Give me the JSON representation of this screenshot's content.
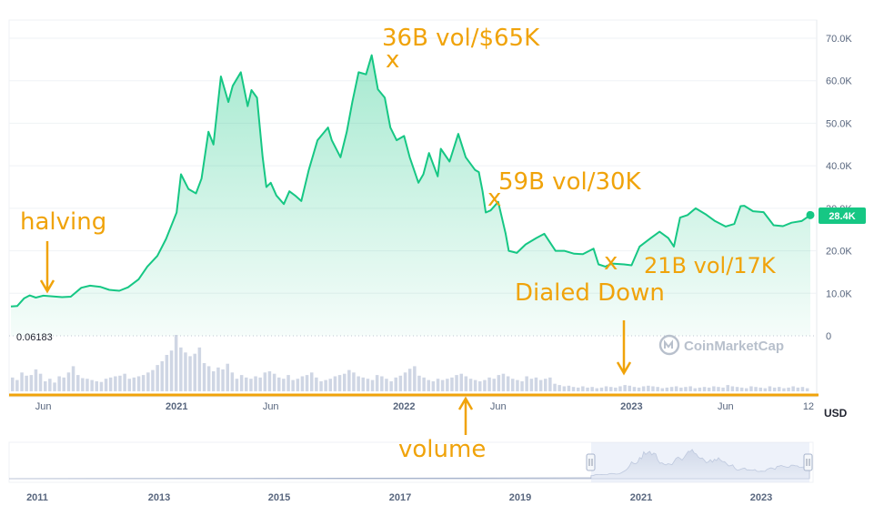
{
  "chart_data": {
    "type": "area",
    "series": [
      {
        "dates": [
          "2020-04-10",
          "2020-04-20",
          "2020-05-01",
          "2020-05-10",
          "2020-05-20",
          "2020-06-01",
          "2020-06-15",
          "2020-07-01",
          "2020-07-15",
          "2020-08-01",
          "2020-08-15",
          "2020-09-01",
          "2020-09-15",
          "2020-10-01",
          "2020-10-15",
          "2020-11-01",
          "2020-11-15",
          "2020-12-01",
          "2020-12-15",
          "2021-01-01",
          "2021-01-08",
          "2021-01-20",
          "2021-02-01",
          "2021-02-10",
          "2021-02-21",
          "2021-03-01",
          "2021-03-13",
          "2021-03-25",
          "2021-04-01",
          "2021-04-14",
          "2021-04-25",
          "2021-05-01",
          "2021-05-10",
          "2021-05-19",
          "2021-05-25",
          "2021-06-01",
          "2021-06-10",
          "2021-06-22",
          "2021-07-01",
          "2021-07-10",
          "2021-07-20",
          "2021-08-01",
          "2021-08-15",
          "2021-09-01",
          "2021-09-07",
          "2021-09-21",
          "2021-10-01",
          "2021-10-10",
          "2021-10-20",
          "2021-11-01",
          "2021-11-10",
          "2021-11-20",
          "2021-12-01",
          "2021-12-10",
          "2021-12-20",
          "2022-01-01",
          "2022-01-10",
          "2022-01-24",
          "2022-02-01",
          "2022-02-10",
          "2022-02-24",
          "2022-03-01",
          "2022-03-15",
          "2022-03-29",
          "2022-04-10",
          "2022-04-25",
          "2022-05-01",
          "2022-05-07",
          "2022-05-12",
          "2022-05-20",
          "2022-06-01",
          "2022-06-13",
          "2022-06-18",
          "2022-07-01",
          "2022-07-15",
          "2022-08-01",
          "2022-08-14",
          "2022-09-01",
          "2022-09-15",
          "2022-10-01",
          "2022-10-15",
          "2022-11-01",
          "2022-11-09",
          "2022-11-20",
          "2022-12-01",
          "2022-12-20",
          "2023-01-01",
          "2023-01-14",
          "2023-02-01",
          "2023-02-15",
          "2023-03-01",
          "2023-03-10",
          "2023-03-20",
          "2023-04-01",
          "2023-04-14",
          "2023-05-01",
          "2023-05-15",
          "2023-06-01",
          "2023-06-15",
          "2023-06-25",
          "2023-07-01",
          "2023-07-15",
          "2023-08-01",
          "2023-08-17",
          "2023-09-01",
          "2023-09-15",
          "2023-10-01",
          "2023-10-10",
          "2023-10-15"
        ],
        "values": [
          6900,
          7000,
          8800,
          9500,
          9000,
          9450,
          9300,
          9100,
          9200,
          11300,
          11800,
          11500,
          10800,
          10600,
          11400,
          13300,
          16300,
          18800,
          22800,
          29000,
          38000,
          34500,
          33500,
          37000,
          48000,
          45000,
          61000,
          55000,
          58800,
          62000,
          54000,
          57800,
          56000,
          42000,
          35000,
          36000,
          33000,
          31000,
          34000,
          33000,
          31700,
          39000,
          46000,
          49000,
          46000,
          42000,
          48000,
          55000,
          62000,
          61500,
          66000,
          58000,
          56000,
          49000,
          46000,
          47000,
          42000,
          36000,
          38000,
          43000,
          37500,
          44000,
          41000,
          47500,
          42000,
          39000,
          38500,
          34000,
          29000,
          29500,
          31500,
          24000,
          20000,
          19500,
          21500,
          23000,
          24000,
          20000,
          20000,
          19300,
          19200,
          20500,
          16800,
          16300,
          17000,
          16800,
          16600,
          21000,
          23000,
          24500,
          23000,
          21000,
          27800,
          28400,
          30000,
          28500,
          27000,
          25700,
          26300,
          30500,
          30600,
          29300,
          29100,
          26000,
          25800,
          26600,
          27000,
          27900,
          28400
        ]
      }
    ],
    "volume_bars": [
      22,
      18,
      30,
      25,
      26,
      35,
      28,
      16,
      20,
      14,
      24,
      22,
      30,
      40,
      26,
      21,
      20,
      18,
      16,
      15,
      20,
      22,
      24,
      25,
      28,
      20,
      22,
      24,
      26,
      30,
      34,
      42,
      48,
      58,
      65,
      90,
      70,
      62,
      56,
      60,
      70,
      45,
      40,
      32,
      38,
      35,
      44,
      30,
      20,
      26,
      22,
      20,
      24,
      22,
      30,
      32,
      28,
      22,
      20,
      26,
      18,
      20,
      24,
      26,
      30,
      22,
      16,
      18,
      20,
      24,
      26,
      28,
      34,
      30,
      24,
      22,
      20,
      18,
      26,
      24,
      20,
      16,
      22,
      25,
      30,
      36,
      40,
      25,
      22,
      18,
      16,
      20,
      18,
      20,
      22,
      26,
      28,
      24,
      20,
      18,
      16,
      18,
      22,
      20,
      26,
      28,
      24,
      20,
      18,
      16,
      24,
      20,
      22,
      18,
      20,
      22,
      12,
      10,
      8,
      9,
      7,
      6,
      8,
      6,
      7,
      5,
      6,
      8,
      7,
      6,
      8,
      10,
      9,
      7,
      6,
      8,
      9,
      8,
      7,
      5,
      6,
      7,
      8,
      6,
      7,
      8,
      5,
      6,
      7,
      6,
      8,
      7,
      6,
      10,
      8,
      7,
      6,
      5,
      8,
      7,
      6,
      5,
      8,
      6,
      7,
      5,
      6,
      8,
      6,
      7,
      5
    ],
    "y_ticks": [
      "70.0K",
      "60.0K",
      "50.0K",
      "40.0K",
      "30.0K",
      "20.0K",
      "10.0K",
      "0"
    ],
    "y_tick_values": [
      70000,
      60000,
      50000,
      40000,
      30000,
      20000,
      10000,
      0
    ],
    "ylim": [
      0,
      75000
    ],
    "x_ticks": [
      {
        "label": "Jun",
        "date": "2020-06-01",
        "bold": false
      },
      {
        "label": "2021",
        "date": "2021-01-01",
        "bold": true
      },
      {
        "label": "Jun",
        "date": "2021-06-01",
        "bold": false
      },
      {
        "label": "2022",
        "date": "2022-01-01",
        "bold": true
      },
      {
        "label": "Jun",
        "date": "2022-06-01",
        "bold": false
      },
      {
        "label": "2023",
        "date": "2023-01-01",
        "bold": true
      },
      {
        "label": "Jun",
        "date": "2023-06-01",
        "bold": false
      },
      {
        "label": "12",
        "date": "2023-10-12",
        "bold": false
      }
    ],
    "x_range": [
      "2020-04-10",
      "2023-10-15"
    ],
    "current_price_label": "28.4K",
    "volume_min_label": "0.06183",
    "currency_label": "USD",
    "watermark": "CoinMarketCap",
    "navigator": {
      "years": [
        "2011",
        "2013",
        "2015",
        "2017",
        "2019",
        "2021",
        "2023"
      ],
      "selection_start": "2020-04-10",
      "selection_end": "2023-10-15"
    },
    "annotations": [
      {
        "text": "36B vol/$65K",
        "date": "2021-11-10",
        "value": 65000
      },
      {
        "text": "halving",
        "date": "2020-05-11",
        "value": 9000
      },
      {
        "text": "59B vol/30K",
        "date": "2022-05-12",
        "value": 30000
      },
      {
        "text": "21B vol/17K",
        "date": "2022-11-09",
        "value": 17000
      },
      {
        "text": "Dialed Down",
        "date": "2022-12-01",
        "value": 0
      },
      {
        "text": "volume",
        "date": "2022-02-01",
        "value": 0
      }
    ],
    "colors": {
      "line": "#16c784",
      "fill_top": "#16c784",
      "volume": "#cfd6e4",
      "annotation": "#f0a30a",
      "price_tag_bg": "#16c784"
    },
    "grid": "horizontal"
  }
}
